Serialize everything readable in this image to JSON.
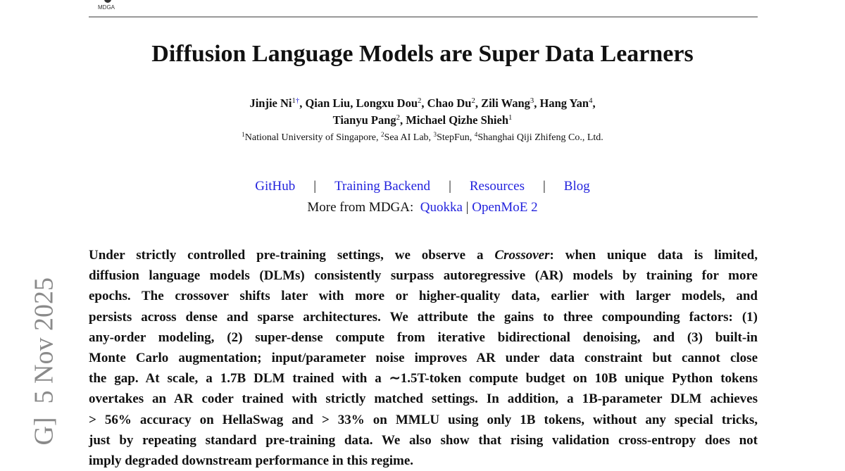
{
  "header": {
    "logo_text": "MDGA"
  },
  "title": "Diffusion Language Models are Super Data Learners",
  "separator_comma": ",",
  "authors": [
    [
      {
        "name": "Jinjie Ni",
        "sup": "1",
        "mark": "†"
      },
      {
        "name": "Qian Liu"
      },
      {
        "name": "Longxu Dou",
        "sup": "2"
      },
      {
        "name": "Chao Du",
        "sup": "2"
      },
      {
        "name": "Zili Wang",
        "sup": "3"
      },
      {
        "name": "Hang Yan",
        "sup": "4"
      }
    ],
    [
      {
        "name": "Tianyu Pang",
        "sup": "2"
      },
      {
        "name": "Michael Qizhe Shieh",
        "sup": "1"
      }
    ]
  ],
  "affiliations": [
    {
      "sup": "1",
      "name": "National University of Singapore"
    },
    {
      "sup": "2",
      "name": "Sea AI Lab"
    },
    {
      "sup": "3",
      "name": "StepFun"
    },
    {
      "sup": "4",
      "name": "Shanghai Qiji Zhifeng Co., Ltd."
    }
  ],
  "links": {
    "separator": "|",
    "items": [
      "GitHub",
      "Training Backend",
      "Resources",
      "Blog"
    ],
    "more_label": "More from MDGA:",
    "more_items": [
      "Quokka",
      "OpenMoE 2"
    ]
  },
  "abstract": {
    "lines": [
      [
        "Under strictly controlled pre-training settings, we observe a ",
        "Crossover",
        ": when unique data is limited,"
      ],
      [
        "diffusion language models (DLMs) consistently surpass autoregressive (AR) models by training for more"
      ],
      [
        "epochs. The crossover shifts later with more or higher-quality data, earlier with larger models, and"
      ],
      [
        "persists across dense and sparse architectures. We attribute the gains to three compounding factors: (1)"
      ],
      [
        "any-order modeling, (2) super-dense compute from iterative bidirectional denoising, and (3) built-in"
      ],
      [
        "Monte Carlo augmentation; input/parameter noise improves AR under data constraint but cannot close"
      ],
      [
        "the gap. At scale, a 1.7B DLM trained with a ∼1.5T-token compute budget on 10B unique Python tokens"
      ],
      [
        "overtakes an AR coder trained with strictly matched settings. In addition, a 1B-parameter DLM achieves"
      ],
      [
        "> 56% accuracy on HellaSwag and > 33% on MMLU using only 1B tokens, without any special tricks,"
      ],
      [
        "just by repeating standard pre-training data. We also show that rising validation cross-entropy does not"
      ],
      [
        "imply degraded downstream performance in this regime."
      ]
    ]
  },
  "stamp": "G]  5 Nov 2025"
}
